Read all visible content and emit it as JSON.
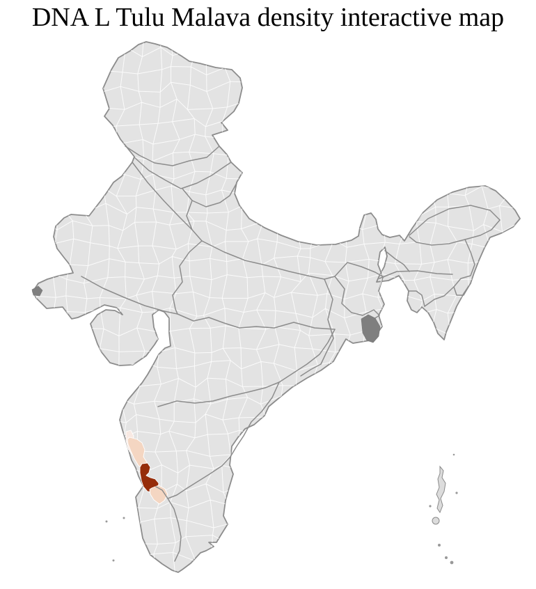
{
  "page": {
    "title": "DNA L Tulu Malava density interactive map"
  },
  "map": {
    "country": "India",
    "type": "district choropleth",
    "colors": {
      "background": "#ffffff",
      "land": "#e3e3e3",
      "district_border": "#ffffff",
      "state_border": "#8c8c8c",
      "density_high": "#962d0a",
      "density_medium": "#f4d6c2",
      "density_low": "#f8e9e3",
      "delta_patch": "#7f7f7f",
      "islet": "#999999"
    },
    "highlighted_regions": {
      "count": 4,
      "location": "south-west coast"
    }
  }
}
